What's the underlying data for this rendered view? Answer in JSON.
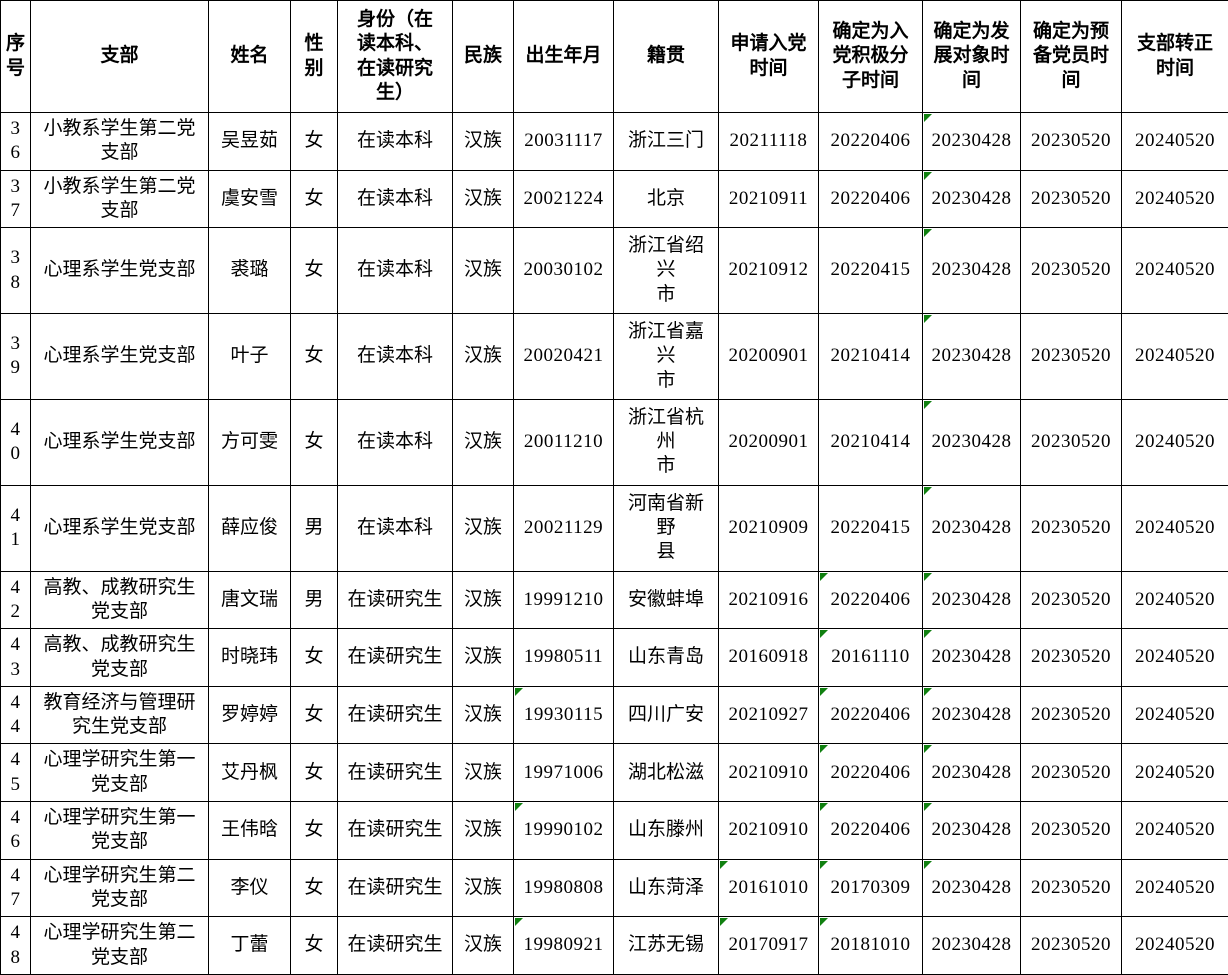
{
  "colors": {
    "background": "#ffffff",
    "grid_line": "#000000",
    "text": "#000000",
    "error_indicator_green": "#108010"
  },
  "table": {
    "columns": [
      {
        "key": "id",
        "label": "序\n号"
      },
      {
        "key": "branch",
        "label": "支部"
      },
      {
        "key": "name",
        "label": "姓名"
      },
      {
        "key": "gender",
        "label": "性别"
      },
      {
        "key": "identity",
        "label": "身份（在\n读本科、\n在读研究\n生）"
      },
      {
        "key": "ethnicity",
        "label": "民族"
      },
      {
        "key": "birth",
        "label": "出生年月"
      },
      {
        "key": "origin",
        "label": "籍贯"
      },
      {
        "key": "apply",
        "label": "申请入党\n时间"
      },
      {
        "key": "activist",
        "label": "确定为入\n党积极分\n子时间"
      },
      {
        "key": "dev",
        "label": "确定为发\n展对象时\n间"
      },
      {
        "key": "probation",
        "label": "确定为预\n备党员时\n间"
      },
      {
        "key": "confirm",
        "label": "支部转正\n时间"
      }
    ],
    "rows": [
      {
        "id": "36",
        "branch": "小教系学生第二党\n支部",
        "name": "吴昱茹",
        "gender": "女",
        "identity": "在读本科",
        "ethnicity": "汉族",
        "birth": "20031117",
        "origin": "浙江三门",
        "apply": "20211118",
        "activist": "20220406",
        "dev": "20230428",
        "probation": "20230520",
        "confirm": "20240520",
        "error_flags": [
          "dev"
        ]
      },
      {
        "id": "37",
        "branch": "小教系学生第二党\n支部",
        "name": "虞安雪",
        "gender": "女",
        "identity": "在读本科",
        "ethnicity": "汉族",
        "birth": "20021224",
        "origin": "北京",
        "apply": "20210911",
        "activist": "20220406",
        "dev": "20230428",
        "probation": "20230520",
        "confirm": "20240520",
        "error_flags": [
          "dev"
        ]
      },
      {
        "id": "38",
        "branch": "心理系学生党支部",
        "name": "裘璐",
        "gender": "女",
        "identity": "在读本科",
        "ethnicity": "汉族",
        "birth": "20030102",
        "origin": "浙江省绍兴\n市",
        "apply": "20210912",
        "activist": "20220415",
        "dev": "20230428",
        "probation": "20230520",
        "confirm": "20240520",
        "error_flags": [
          "dev"
        ]
      },
      {
        "id": "39",
        "branch": "心理系学生党支部",
        "name": "叶子",
        "gender": "女",
        "identity": "在读本科",
        "ethnicity": "汉族",
        "birth": "20020421",
        "origin": "浙江省嘉兴\n市",
        "apply": "20200901",
        "activist": "20210414",
        "dev": "20230428",
        "probation": "20230520",
        "confirm": "20240520",
        "error_flags": [
          "dev"
        ]
      },
      {
        "id": "40",
        "branch": "心理系学生党支部",
        "name": "方可雯",
        "gender": "女",
        "identity": "在读本科",
        "ethnicity": "汉族",
        "birth": "20011210",
        "origin": "浙江省杭州\n市",
        "apply": "20200901",
        "activist": "20210414",
        "dev": "20230428",
        "probation": "20230520",
        "confirm": "20240520",
        "error_flags": [
          "dev"
        ]
      },
      {
        "id": "41",
        "branch": "心理系学生党支部",
        "name": "薛应俊",
        "gender": "男",
        "identity": "在读本科",
        "ethnicity": "汉族",
        "birth": "20021129",
        "origin": "河南省新野\n县",
        "apply": "20210909",
        "activist": "20220415",
        "dev": "20230428",
        "probation": "20230520",
        "confirm": "20240520",
        "error_flags": [
          "dev"
        ]
      },
      {
        "id": "42",
        "branch": "高教、成教研究生\n党支部",
        "name": "唐文瑞",
        "gender": "男",
        "identity": "在读研究生",
        "ethnicity": "汉族",
        "birth": "19991210",
        "origin": "安徽蚌埠",
        "apply": "20210916",
        "activist": "20220406",
        "dev": "20230428",
        "probation": "20230520",
        "confirm": "20240520",
        "error_flags": [
          "activist",
          "dev"
        ]
      },
      {
        "id": "43",
        "branch": "高教、成教研究生\n党支部",
        "name": "时晓玮",
        "gender": "女",
        "identity": "在读研究生",
        "ethnicity": "汉族",
        "birth": "19980511",
        "origin": "山东青岛",
        "apply": "20160918",
        "activist": "20161110",
        "dev": "20230428",
        "probation": "20230520",
        "confirm": "20240520",
        "error_flags": [
          "activist",
          "dev"
        ]
      },
      {
        "id": "44",
        "branch": "教育经济与管理研\n究生党支部",
        "name": "罗婷婷",
        "gender": "女",
        "identity": "在读研究生",
        "ethnicity": "汉族",
        "birth": "19930115",
        "origin": "四川广安",
        "apply": "20210927",
        "activist": "20220406",
        "dev": "20230428",
        "probation": "20230520",
        "confirm": "20240520",
        "error_flags": [
          "birth",
          "activist",
          "dev"
        ]
      },
      {
        "id": "45",
        "branch": "心理学研究生第一\n党支部",
        "name": "艾丹枫",
        "gender": "女",
        "identity": "在读研究生",
        "ethnicity": "汉族",
        "birth": "19971006",
        "origin": "湖北松滋",
        "apply": "20210910",
        "activist": "20220406",
        "dev": "20230428",
        "probation": "20230520",
        "confirm": "20240520",
        "error_flags": [
          "activist",
          "dev"
        ]
      },
      {
        "id": "46",
        "branch": "心理学研究生第一\n党支部",
        "name": "王伟晗",
        "gender": "女",
        "identity": "在读研究生",
        "ethnicity": "汉族",
        "birth": "19990102",
        "origin": "山东滕州",
        "apply": "20210910",
        "activist": "20220406",
        "dev": "20230428",
        "probation": "20230520",
        "confirm": "20240520",
        "error_flags": [
          "birth",
          "activist",
          "dev"
        ]
      },
      {
        "id": "47",
        "branch": "心理学研究生第二\n党支部",
        "name": "李仪",
        "gender": "女",
        "identity": "在读研究生",
        "ethnicity": "汉族",
        "birth": "19980808",
        "origin": "山东菏泽",
        "apply": "20161010",
        "activist": "20170309",
        "dev": "20230428",
        "probation": "20230520",
        "confirm": "20240520",
        "error_flags": [
          "apply",
          "activist",
          "dev"
        ]
      },
      {
        "id": "48",
        "branch": "心理学研究生第二\n党支部",
        "name": "丁蕾",
        "gender": "女",
        "identity": "在读研究生",
        "ethnicity": "汉族",
        "birth": "19980921",
        "origin": "江苏无锡",
        "apply": "20170917",
        "activist": "20181010",
        "dev": "20230428",
        "probation": "20230520",
        "confirm": "20240520",
        "error_flags": [
          "birth",
          "apply",
          "activist"
        ]
      }
    ]
  }
}
